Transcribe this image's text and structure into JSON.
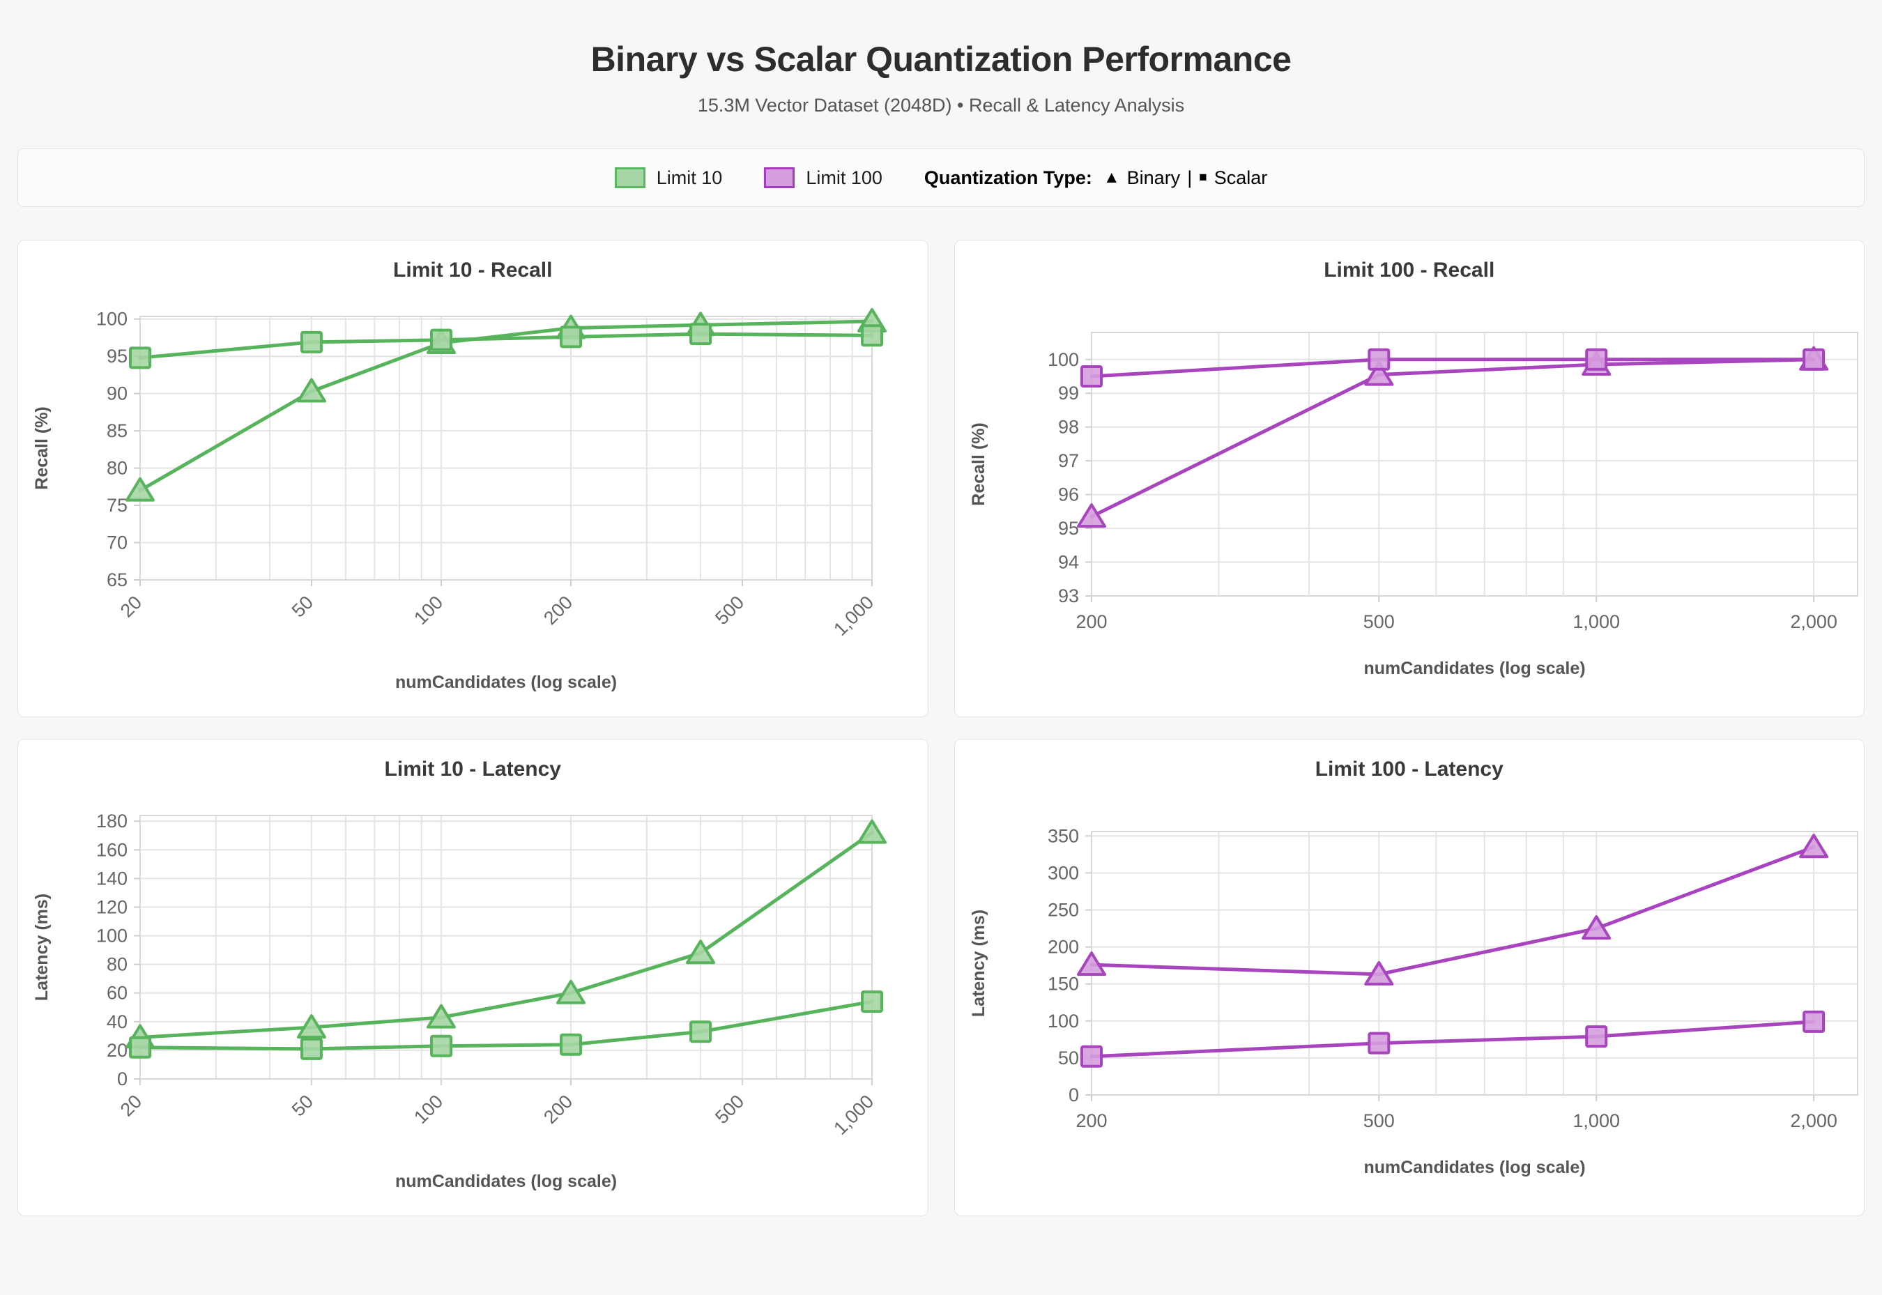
{
  "page": {
    "title": "Binary vs Scalar Quantization Performance",
    "subtitle": "15.3M Vector Dataset (2048D) • Recall & Latency Analysis"
  },
  "legend": {
    "items": [
      {
        "label": "Limit 10",
        "fill": "#A6D6A5",
        "border": "#5ABA60"
      },
      {
        "label": "Limit 100",
        "fill": "#D69EDE",
        "border": "#A83AC0"
      }
    ],
    "quant_label": "Quantization Type:",
    "binary_glyph": "▲",
    "binary_label": "Binary",
    "divider": "|",
    "scalar_glyph": "■",
    "scalar_label": "Scalar"
  },
  "chart_data": [
    {
      "id": "limit10-recall",
      "type": "line",
      "title": "Limit 10 - Recall",
      "xlabel": "numCandidates (log scale)",
      "ylabel": "Recall (%)",
      "x_scale": "log",
      "x_edges": [
        20,
        1000
      ],
      "x_rotated_labels": true,
      "xticks": [
        {
          "v": 20,
          "label": "20"
        },
        {
          "v": 50,
          "label": "50"
        },
        {
          "v": 100,
          "label": "100"
        },
        {
          "v": 200,
          "label": "200"
        },
        {
          "v": 500,
          "label": "500"
        },
        {
          "v": 1000,
          "label": "1,000"
        }
      ],
      "x_gridlines": [
        20,
        30,
        40,
        50,
        60,
        70,
        80,
        90,
        100,
        200,
        300,
        400,
        500,
        600,
        700,
        800,
        900,
        1000
      ],
      "y_edges": [
        65,
        100.35
      ],
      "yticks": [
        65,
        70,
        75,
        80,
        85,
        90,
        95,
        100
      ],
      "line_color": "#57B45C",
      "marker_fill": "#A6D6A5",
      "series": [
        {
          "name": "Binary",
          "marker": "triangle",
          "x": [
            20,
            50,
            100,
            200,
            400,
            1000
          ],
          "y": [
            77.0,
            90.3,
            96.8,
            98.8,
            99.2,
            99.7
          ]
        },
        {
          "name": "Scalar",
          "marker": "square",
          "x": [
            20,
            50,
            100,
            200,
            400,
            1000
          ],
          "y": [
            94.8,
            96.9,
            97.2,
            97.6,
            98.0,
            97.8
          ]
        }
      ]
    },
    {
      "id": "limit100-recall",
      "type": "line",
      "title": "Limit 100 - Recall",
      "xlabel": "numCandidates (log scale)",
      "ylabel": "Recall (%)",
      "x_scale": "log",
      "x_edges": [
        200,
        2300
      ],
      "x_rotated_labels": false,
      "xticks": [
        {
          "v": 200,
          "label": "200"
        },
        {
          "v": 500,
          "label": "500"
        },
        {
          "v": 1000,
          "label": "1,000"
        },
        {
          "v": 2000,
          "label": "2,000"
        }
      ],
      "x_gridlines": [
        200,
        300,
        400,
        500,
        600,
        700,
        800,
        900,
        1000,
        2000
      ],
      "y_edges": [
        93,
        100.8
      ],
      "yticks": [
        93,
        94,
        95,
        96,
        97,
        98,
        99,
        100
      ],
      "line_color": "#A844BE",
      "marker_fill": "#D69EDE",
      "series": [
        {
          "name": "Binary",
          "marker": "triangle",
          "x": [
            200,
            500,
            1000,
            2000
          ],
          "y": [
            95.35,
            99.55,
            99.85,
            100.0
          ]
        },
        {
          "name": "Scalar",
          "marker": "square",
          "x": [
            200,
            500,
            1000,
            2000
          ],
          "y": [
            99.5,
            100.0,
            100.0,
            100.0
          ]
        }
      ]
    },
    {
      "id": "limit10-latency",
      "type": "line",
      "title": "Limit 10 - Latency",
      "xlabel": "numCandidates (log scale)",
      "ylabel": "Latency (ms)",
      "x_scale": "log",
      "x_edges": [
        20,
        1000
      ],
      "x_rotated_labels": true,
      "xticks": [
        {
          "v": 20,
          "label": "20"
        },
        {
          "v": 50,
          "label": "50"
        },
        {
          "v": 100,
          "label": "100"
        },
        {
          "v": 200,
          "label": "200"
        },
        {
          "v": 500,
          "label": "500"
        },
        {
          "v": 1000,
          "label": "1,000"
        }
      ],
      "x_gridlines": [
        20,
        30,
        40,
        50,
        60,
        70,
        80,
        90,
        100,
        200,
        300,
        400,
        500,
        600,
        700,
        800,
        900,
        1000
      ],
      "y_edges": [
        0,
        184
      ],
      "yticks": [
        0,
        20,
        40,
        60,
        80,
        100,
        120,
        140,
        160,
        180
      ],
      "line_color": "#57B45C",
      "marker_fill": "#A6D6A5",
      "series": [
        {
          "name": "Binary",
          "marker": "triangle",
          "x": [
            20,
            50,
            100,
            200,
            400,
            1000
          ],
          "y": [
            29,
            36,
            43,
            60,
            88,
            172
          ]
        },
        {
          "name": "Scalar",
          "marker": "square",
          "x": [
            20,
            50,
            100,
            200,
            400,
            1000
          ],
          "y": [
            22,
            21,
            23,
            24,
            33,
            54
          ]
        }
      ]
    },
    {
      "id": "limit100-latency",
      "type": "line",
      "title": "Limit 100 - Latency",
      "xlabel": "numCandidates (log scale)",
      "ylabel": "Latency (ms)",
      "x_scale": "log",
      "x_edges": [
        200,
        2300
      ],
      "x_rotated_labels": false,
      "xticks": [
        {
          "v": 200,
          "label": "200"
        },
        {
          "v": 500,
          "label": "500"
        },
        {
          "v": 1000,
          "label": "1,000"
        },
        {
          "v": 2000,
          "label": "2,000"
        }
      ],
      "x_gridlines": [
        200,
        300,
        400,
        500,
        600,
        700,
        800,
        900,
        1000,
        2000
      ],
      "y_edges": [
        0,
        356
      ],
      "yticks": [
        0,
        50,
        100,
        150,
        200,
        250,
        300,
        350
      ],
      "line_color": "#A844BE",
      "marker_fill": "#D69EDE",
      "series": [
        {
          "name": "Binary",
          "marker": "triangle",
          "x": [
            200,
            500,
            1000,
            2000
          ],
          "y": [
            176,
            163,
            225,
            335
          ]
        },
        {
          "name": "Scalar",
          "marker": "square",
          "x": [
            200,
            500,
            1000,
            2000
          ],
          "y": [
            52,
            70,
            79,
            99
          ]
        }
      ]
    }
  ]
}
